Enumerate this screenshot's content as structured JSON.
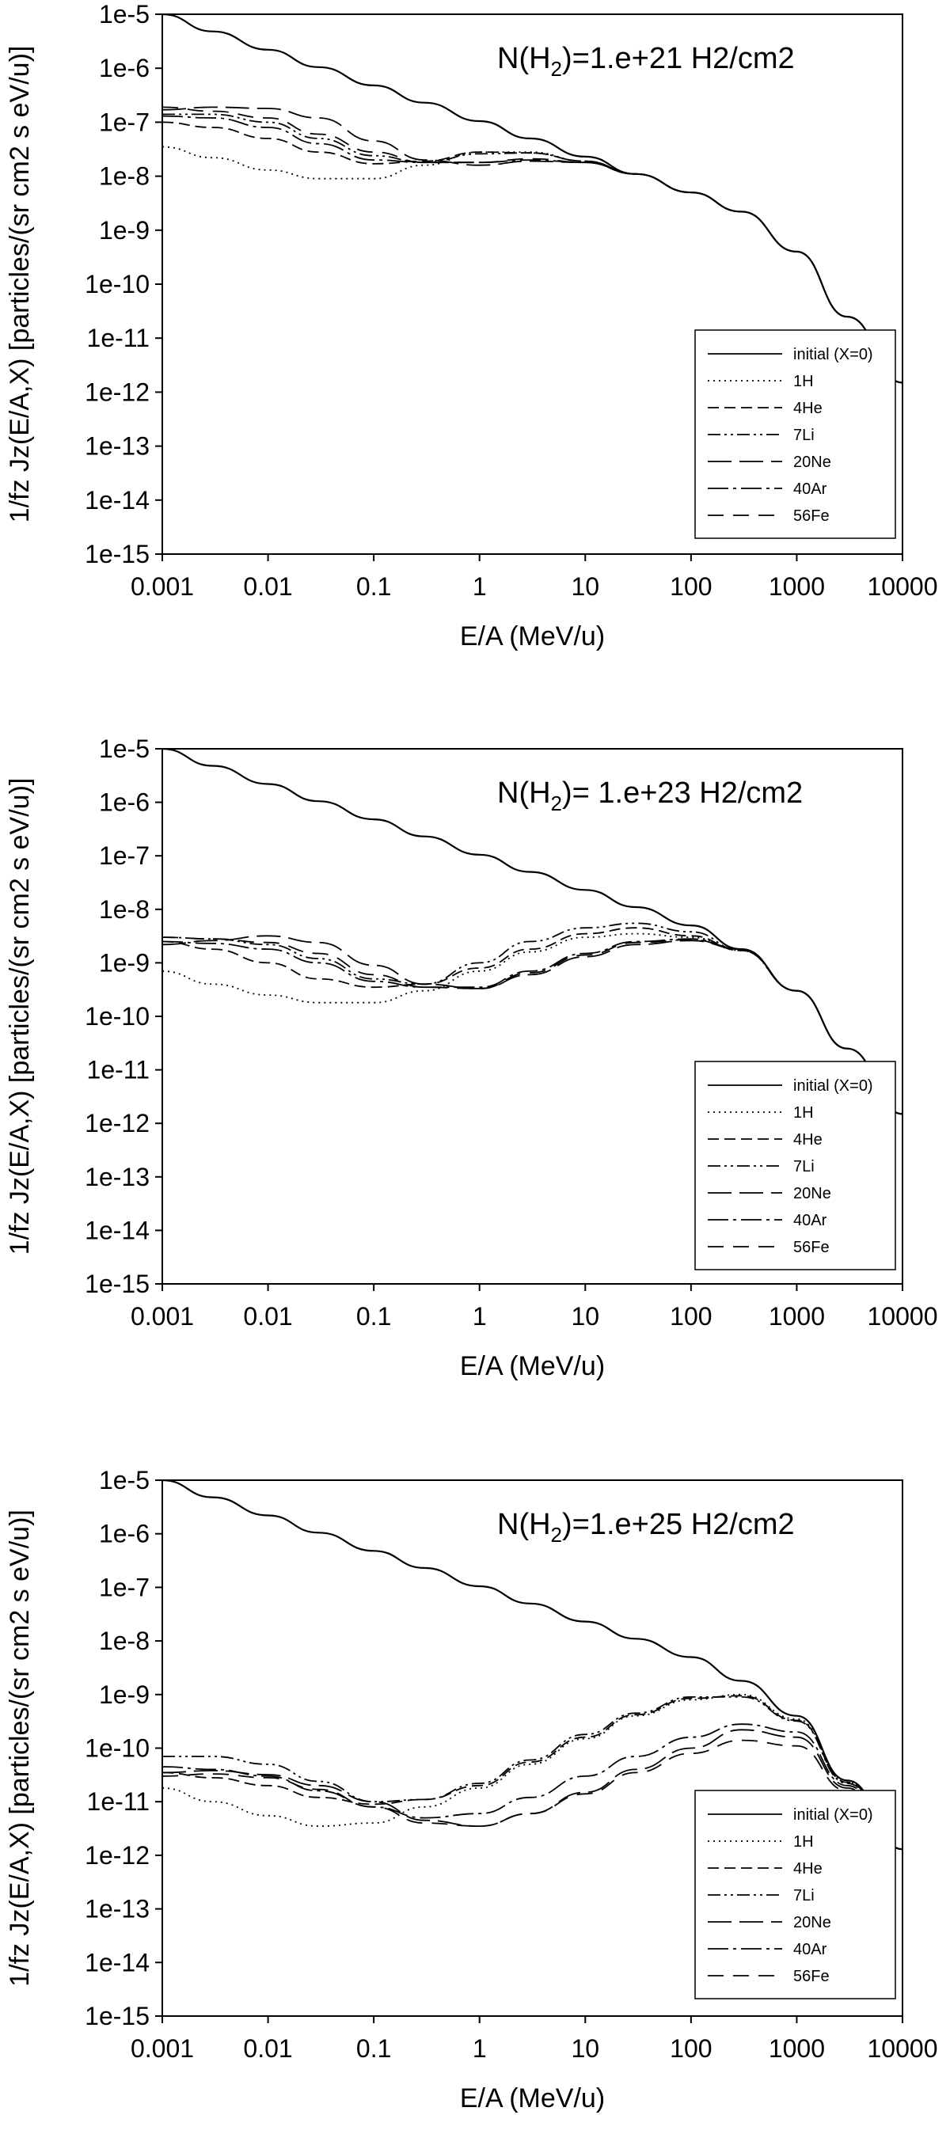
{
  "chart_data": [
    {
      "type": "line",
      "panel": "top",
      "title": "",
      "annotation": {
        "prefix": "N(H",
        "subscript": "2",
        "suffix": ")=1.e+21 H2/cm2"
      },
      "xlabel": "E/A (MeV/u)",
      "ylabel": "1/fz  Jz(E/A,X)  [particles/(sr cm2 s eV/u)]",
      "xscale": "log",
      "yscale": "log",
      "xlim": [
        0.001,
        10000
      ],
      "ylim": [
        1e-15,
        1e-05
      ],
      "x_ticks": [
        "0.001",
        "0.01",
        "0.1",
        "1",
        "10",
        "100",
        "1000",
        "10000"
      ],
      "y_ticks": [
        "1e-15",
        "1e-14",
        "1e-13",
        "1e-12",
        "1e-11",
        "1e-10",
        "1e-9",
        "1e-8",
        "1e-7",
        "1e-6",
        "1e-5"
      ],
      "legend_position": "lower-right",
      "x": [
        0.001,
        0.003,
        0.01,
        0.03,
        0.1,
        0.3,
        1,
        3,
        10,
        30,
        100,
        300,
        1000,
        3000,
        10000
      ],
      "series": [
        {
          "name": "initial (X=0)",
          "dash": "solid",
          "values": [
            1e-05,
            4.8e-06,
            2.2e-06,
            1.05e-06,
            4.8e-07,
            2.3e-07,
            1.05e-07,
            5e-08,
            2.3e-08,
            1.1e-08,
            5e-09,
            2.2e-09,
            4e-10,
            2.5e-11,
            1.5e-12
          ]
        },
        {
          "name": "1H",
          "dash": "dotted",
          "values": [
            3.5e-08,
            2.2e-08,
            1.3e-08,
            9e-09,
            9e-09,
            1.6e-08,
            2.8e-08,
            2.8e-08,
            1.9e-08,
            1.1e-08,
            5e-09,
            2.2e-09,
            4e-10,
            2.5e-11,
            1.5e-12
          ]
        },
        {
          "name": "4He",
          "dash": "dashed",
          "values": [
            1e-07,
            8e-08,
            5e-08,
            2.8e-08,
            1.7e-08,
            1.9e-08,
            2.8e-08,
            2.7e-08,
            1.9e-08,
            1.1e-08,
            5e-09,
            2.2e-09,
            4e-10,
            2.5e-11,
            1.5e-12
          ]
        },
        {
          "name": "7Li",
          "dash": "dash-dot-dot",
          "values": [
            1.4e-07,
            1.4e-07,
            1e-07,
            5e-08,
            2.4e-08,
            1.8e-08,
            2.6e-08,
            2.7e-08,
            1.9e-08,
            1.1e-08,
            5e-09,
            2.2e-09,
            4e-10,
            2.5e-11,
            1.5e-12
          ]
        },
        {
          "name": "20Ne",
          "dash": "long-dash",
          "values": [
            1.7e-07,
            1.9e-07,
            1.8e-07,
            1.2e-07,
            4.5e-08,
            2e-08,
            1.6e-08,
            1.9e-08,
            1.8e-08,
            1.1e-08,
            5e-09,
            2.2e-09,
            4e-10,
            2.5e-11,
            1.5e-12
          ]
        },
        {
          "name": "40Ar",
          "dash": "long-dash-dot",
          "values": [
            1.3e-07,
            1.2e-07,
            8e-08,
            4e-08,
            2e-08,
            1.8e-08,
            1.8e-08,
            2e-08,
            1.8e-08,
            1.1e-08,
            5e-09,
            2.2e-09,
            4e-10,
            2.5e-11,
            1.5e-12
          ]
        },
        {
          "name": "56Fe",
          "dash": "dash-gap",
          "values": [
            1.9e-07,
            1.6e-07,
            1.2e-07,
            6e-08,
            2.8e-08,
            1.8e-08,
            1.8e-08,
            2.1e-08,
            1.8e-08,
            1.1e-08,
            5e-09,
            2.2e-09,
            4e-10,
            2.5e-11,
            1.5e-12
          ]
        }
      ]
    },
    {
      "type": "line",
      "panel": "middle",
      "title": "",
      "annotation": {
        "prefix": "N(H",
        "subscript": "2",
        "suffix": ")= 1.e+23 H2/cm2"
      },
      "xlabel": "E/A (MeV/u)",
      "ylabel": "1/fz  Jz(E/A,X) [particles/(sr cm2 s eV/u)]",
      "xscale": "log",
      "yscale": "log",
      "xlim": [
        0.001,
        10000
      ],
      "ylim": [
        1e-15,
        1e-05
      ],
      "x_ticks": [
        "0.001",
        "0.01",
        "0.1",
        "1",
        "10",
        "100",
        "1000",
        "10000"
      ],
      "y_ticks": [
        "1e-15",
        "1e-14",
        "1e-13",
        "1e-12",
        "1e-11",
        "1e-10",
        "1e-9",
        "1e-8",
        "1e-7",
        "1e-6",
        "1e-5"
      ],
      "legend_position": "lower-right",
      "x": [
        0.001,
        0.003,
        0.01,
        0.03,
        0.1,
        0.3,
        1,
        3,
        10,
        30,
        100,
        300,
        1000,
        3000,
        10000
      ],
      "series": [
        {
          "name": "initial (X=0)",
          "dash": "solid",
          "values": [
            1e-05,
            4.8e-06,
            2.2e-06,
            1.05e-06,
            4.8e-07,
            2.3e-07,
            1.05e-07,
            5e-08,
            2.3e-08,
            1.1e-08,
            5e-09,
            1.8e-09,
            3e-10,
            2.5e-11,
            1.5e-12
          ]
        },
        {
          "name": "1H",
          "dash": "dotted",
          "values": [
            7e-10,
            4e-10,
            2.5e-10,
            1.8e-10,
            1.8e-10,
            3e-10,
            7e-10,
            1.6e-09,
            3e-09,
            3.5e-09,
            3e-09,
            1.7e-09,
            3e-10,
            2.5e-11,
            1.5e-12
          ]
        },
        {
          "name": "4He",
          "dash": "dashed",
          "values": [
            2.5e-09,
            1.8e-09,
            1e-09,
            5e-10,
            3.5e-10,
            4e-10,
            8e-10,
            1.8e-09,
            3.5e-09,
            4.5e-09,
            3.2e-09,
            1.7e-09,
            3e-10,
            2.5e-11,
            1.5e-12
          ]
        },
        {
          "name": "7Li",
          "dash": "dash-dot-dot",
          "values": [
            3e-09,
            2.8e-09,
            2.2e-09,
            1.2e-09,
            5e-10,
            4e-10,
            1e-09,
            2.5e-09,
            4.5e-09,
            5.5e-09,
            3.8e-09,
            1.7e-09,
            3e-10,
            2.5e-11,
            1.5e-12
          ]
        },
        {
          "name": "20Ne",
          "dash": "long-dash",
          "values": [
            2.2e-09,
            2.6e-09,
            3.2e-09,
            2.4e-09,
            9e-10,
            4e-10,
            3.3e-10,
            6e-10,
            1.3e-09,
            2.2e-09,
            2.6e-09,
            1.8e-09,
            3e-10,
            2.5e-11,
            1.5e-12
          ]
        },
        {
          "name": "40Ar",
          "dash": "long-dash-dot",
          "values": [
            2.5e-09,
            2.3e-09,
            1.8e-09,
            1e-09,
            4.5e-10,
            3.5e-10,
            3.5e-10,
            7e-10,
            1.5e-09,
            2.5e-09,
            2.8e-09,
            1.8e-09,
            3e-10,
            2.5e-11,
            1.5e-12
          ]
        },
        {
          "name": "56Fe",
          "dash": "dash-gap",
          "values": [
            3e-09,
            2.8e-09,
            2.4e-09,
            1.5e-09,
            6e-10,
            3.5e-10,
            3.3e-10,
            6.5e-10,
            1.4e-09,
            2.4e-09,
            2.7e-09,
            1.8e-09,
            3e-10,
            2.5e-11,
            1.5e-12
          ]
        }
      ]
    },
    {
      "type": "line",
      "panel": "bottom",
      "title": "",
      "annotation": {
        "prefix": "N(H",
        "subscript": "2",
        "suffix": ")=1.e+25 H2/cm2"
      },
      "xlabel": "E/A (MeV/u)",
      "ylabel": "1/fz  Jz(E/A,X) [particles/(sr cm2 s eV/u)]",
      "xscale": "log",
      "yscale": "log",
      "xlim": [
        0.001,
        10000
      ],
      "ylim": [
        1e-15,
        1e-05
      ],
      "x_ticks": [
        "0.001",
        "0.01",
        "0.1",
        "1",
        "10",
        "100",
        "1000",
        "10000"
      ],
      "y_ticks": [
        "1e-15",
        "1e-14",
        "1e-13",
        "1e-12",
        "1e-11",
        "1e-10",
        "1e-9",
        "1e-8",
        "1e-7",
        "1e-6",
        "1e-5"
      ],
      "legend_position": "lower-right",
      "x": [
        0.001,
        0.003,
        0.01,
        0.03,
        0.1,
        0.3,
        1,
        3,
        10,
        30,
        100,
        300,
        1000,
        3000,
        10000
      ],
      "series": [
        {
          "name": "initial (X=0)",
          "dash": "solid",
          "values": [
            1e-05,
            4.8e-06,
            2.2e-06,
            1.05e-06,
            4.8e-07,
            2.3e-07,
            1.05e-07,
            5e-08,
            2.3e-08,
            1.1e-08,
            5e-09,
            1.8e-09,
            4e-10,
            2.5e-11,
            1.3e-12
          ]
        },
        {
          "name": "1H",
          "dash": "dotted",
          "values": [
            1.8e-11,
            1e-11,
            5.5e-12,
            3.5e-12,
            4e-12,
            8e-12,
            1.8e-11,
            5e-11,
            1.5e-10,
            4e-10,
            8e-10,
            1e-09,
            3.5e-10,
            2.3e-11,
            1.3e-12
          ]
        },
        {
          "name": "4He",
          "dash": "dashed",
          "values": [
            3.5e-11,
            2.8e-11,
            2e-11,
            1.2e-11,
            9e-12,
            1.1e-11,
            2e-11,
            5.5e-11,
            1.6e-10,
            4.2e-10,
            8.5e-10,
            9.5e-10,
            3.3e-10,
            2.3e-11,
            1.3e-12
          ]
        },
        {
          "name": "7Li",
          "dash": "dash-dot-dot",
          "values": [
            7e-11,
            7e-11,
            5e-11,
            2.4e-11,
            1e-11,
            1.1e-11,
            2.2e-11,
            6e-11,
            1.8e-10,
            4.5e-10,
            9e-10,
            9e-10,
            3.2e-10,
            2.2e-11,
            1.3e-12
          ]
        },
        {
          "name": "20Ne",
          "dash": "long-dash",
          "values": [
            3.5e-11,
            3.8e-11,
            3.2e-11,
            2e-11,
            1e-11,
            4.5e-12,
            3.5e-12,
            6e-12,
            1.5e-11,
            4e-11,
            1e-10,
            2.2e-10,
            1.6e-10,
            1.8e-11,
            1.3e-12
          ]
        },
        {
          "name": "40Ar",
          "dash": "long-dash-dot",
          "values": [
            4.5e-11,
            4e-11,
            3e-11,
            1.6e-11,
            8e-12,
            5e-12,
            6e-12,
            1.2e-11,
            3e-11,
            7e-11,
            1.6e-10,
            2.8e-10,
            2e-10,
            2e-11,
            1.3e-12
          ]
        },
        {
          "name": "56Fe",
          "dash": "dash-gap",
          "values": [
            3e-11,
            3.3e-11,
            2.8e-11,
            1.7e-11,
            8e-12,
            4e-12,
            3.5e-12,
            6e-12,
            1.4e-11,
            3.5e-11,
            8e-11,
            1.4e-10,
            1.1e-10,
            1.6e-11,
            1.3e-12
          ]
        }
      ]
    }
  ]
}
